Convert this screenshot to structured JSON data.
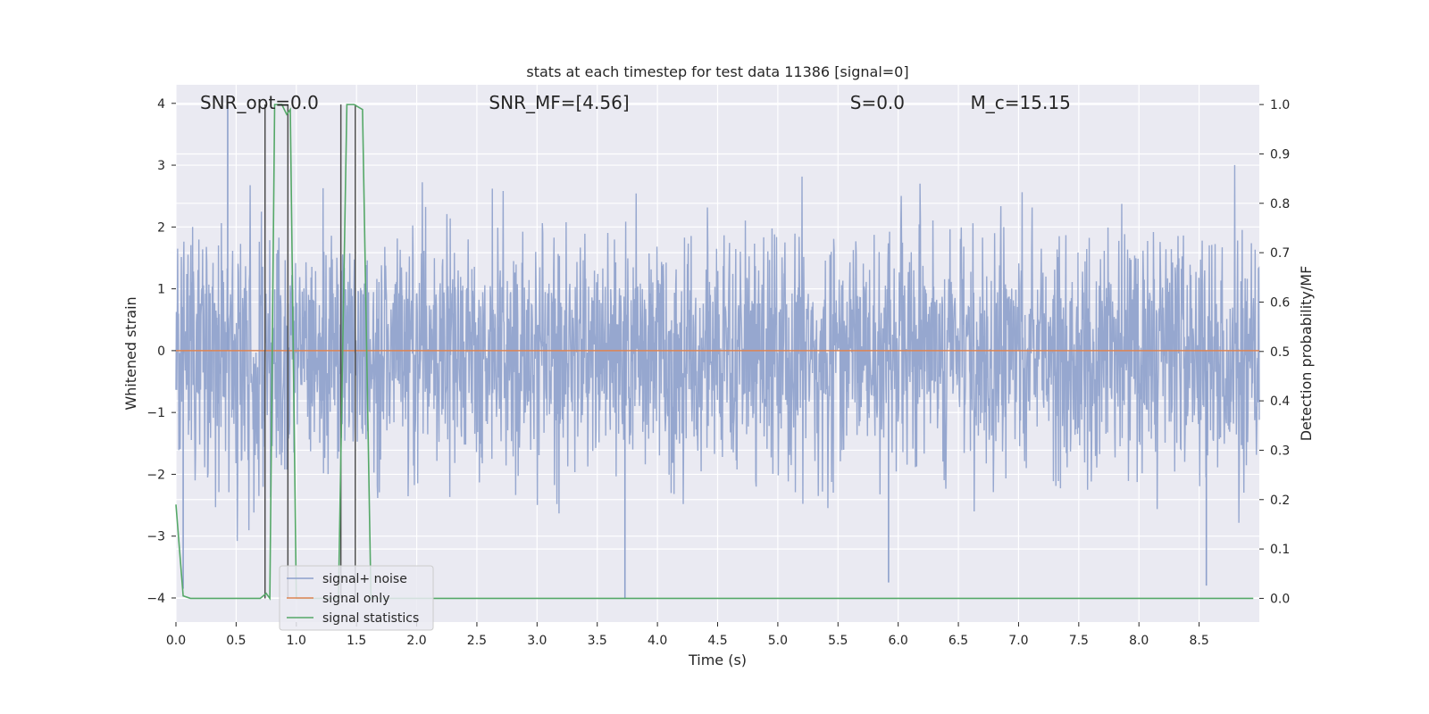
{
  "chart_data": {
    "type": "line",
    "title": "stats at each timestep for test data 11386 [signal=0]",
    "xlabel": "Time (s)",
    "ylabel_left": "Whitened strain",
    "ylabel_right": "Detection probability/MF",
    "xlim": [
      0,
      9
    ],
    "ylim_left": [
      -4.39,
      4.3
    ],
    "ylim_right": [
      -0.048,
      1.04
    ],
    "x_ticks": [
      0.0,
      0.5,
      1.0,
      1.5,
      2.0,
      2.5,
      3.0,
      3.5,
      4.0,
      4.5,
      5.0,
      5.5,
      6.0,
      6.5,
      7.0,
      7.5,
      8.0,
      8.5
    ],
    "x_tick_labels": [
      "0.0",
      "0.5",
      "1.0",
      "1.5",
      "2.0",
      "2.5",
      "3.0",
      "3.5",
      "4.0",
      "4.5",
      "5.0",
      "5.5",
      "6.0",
      "6.5",
      "7.0",
      "7.5",
      "8.0",
      "8.5"
    ],
    "y_left_ticks": [
      -4,
      -3,
      -2,
      -1,
      0,
      1,
      2,
      3,
      4
    ],
    "y_left_tick_labels": [
      "−4",
      "−3",
      "−2",
      "−1",
      "0",
      "1",
      "2",
      "3",
      "4"
    ],
    "y_right_ticks": [
      0.0,
      0.1,
      0.2,
      0.3,
      0.4,
      0.5,
      0.6,
      0.7,
      0.8,
      0.9,
      1.0
    ],
    "y_right_tick_labels": [
      "0.0",
      "0.1",
      "0.2",
      "0.3",
      "0.4",
      "0.5",
      "0.6",
      "0.7",
      "0.8",
      "0.9",
      "1.0"
    ],
    "grid": true,
    "legend_position": "lower-left",
    "annotations": [
      {
        "text": "SNR_opt=0.0",
        "x": 0.2
      },
      {
        "text": "SNR_MF=[4.56]",
        "x": 2.6
      },
      {
        "text": "S=0.0",
        "x": 5.6
      },
      {
        "text": "M_c=15.15",
        "x": 6.6
      }
    ],
    "series": [
      {
        "name": "signal+ noise",
        "color": "#8da0cb",
        "axis": "left",
        "kind": "whitened noise strain, ~N(0,1), range approx -4.0 to 4.0",
        "spikes": [
          {
            "x": 0.06,
            "y": -3.85
          },
          {
            "x": 0.43,
            "y": 4.0
          },
          {
            "x": 3.73,
            "y": -4.0
          },
          {
            "x": 5.92,
            "y": -3.75
          },
          {
            "x": 8.56,
            "y": -3.8
          }
        ]
      },
      {
        "name": "signal only",
        "color": "#dd8452",
        "axis": "left",
        "x": [
          0,
          9
        ],
        "y": [
          0,
          0
        ]
      },
      {
        "name": "signal statistics",
        "color": "#55a868",
        "axis": "right",
        "x": [
          0.0,
          0.06,
          0.12,
          0.7,
          0.75,
          0.78,
          0.82,
          0.88,
          0.92,
          0.95,
          1.0,
          1.3,
          1.35,
          1.42,
          1.48,
          1.55,
          1.62,
          1.7,
          8.95
        ],
        "y": [
          0.19,
          0.005,
          0.0,
          0.0,
          0.01,
          0.0,
          1.0,
          1.0,
          0.98,
          0.99,
          0.0,
          0.0,
          0.0,
          1.0,
          1.0,
          0.99,
          0.0,
          0.0,
          0.0
        ]
      }
    ],
    "vertical_markers": {
      "color": "#4d4d4d",
      "segments": [
        {
          "x": 0.74,
          "y_top": 1.0
        },
        {
          "x": 0.93,
          "y_top": 1.0
        },
        {
          "x": 1.37,
          "y_top": 1.0
        },
        {
          "x": 1.49,
          "y_top": 1.0
        }
      ]
    }
  }
}
